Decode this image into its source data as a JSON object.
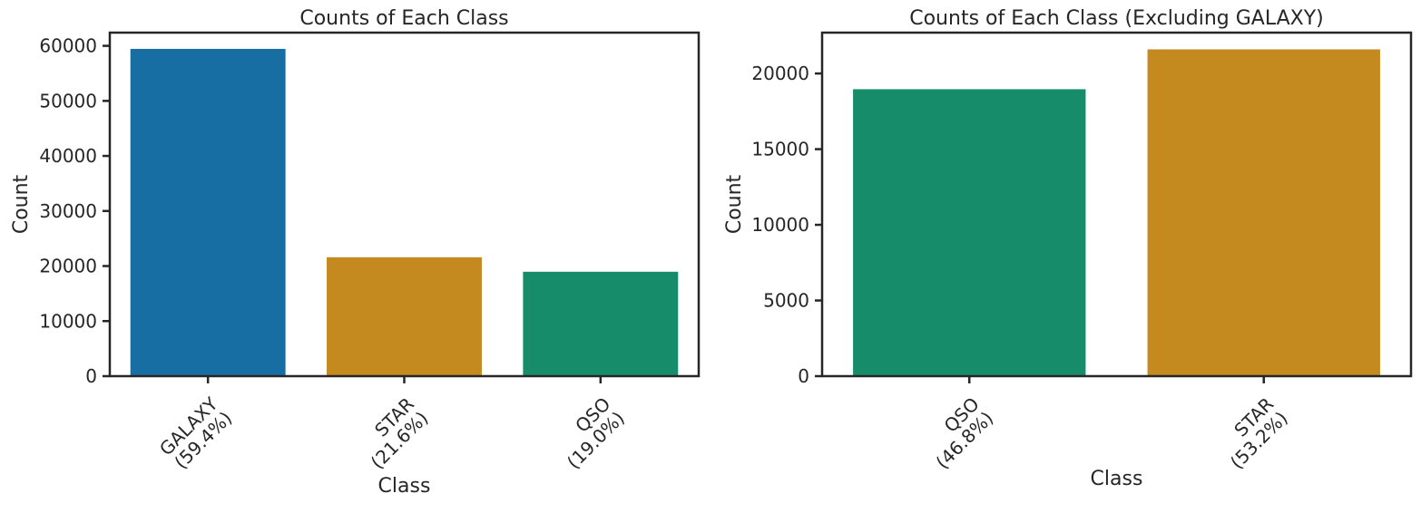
{
  "chart_data": [
    {
      "type": "bar",
      "title": "Counts of Each Class",
      "xlabel": "Class",
      "ylabel": "Count",
      "categories": [
        "GALAXY\n(59.4%)",
        "STAR\n(21.6%)",
        "QSO\n(19.0%)"
      ],
      "values": [
        59445,
        21594,
        18961
      ],
      "colors": [
        "#176ea2",
        "#c4891f",
        "#178c6a"
      ],
      "ylim": [
        0,
        62400
      ],
      "yticks": [
        0,
        10000,
        20000,
        30000,
        40000,
        50000,
        60000
      ],
      "xtick_rotation": 45,
      "grid": false
    },
    {
      "type": "bar",
      "title": "Counts of Each Class (Excluding GALAXY)",
      "xlabel": "Class",
      "ylabel": "Count",
      "categories": [
        "QSO\n(46.8%)",
        "STAR\n(53.2%)"
      ],
      "values": [
        18961,
        21594
      ],
      "colors": [
        "#178c6a",
        "#c4891f"
      ],
      "ylim": [
        0,
        22700
      ],
      "yticks": [
        0,
        5000,
        10000,
        15000,
        20000
      ],
      "xtick_rotation": 45,
      "grid": false
    }
  ]
}
